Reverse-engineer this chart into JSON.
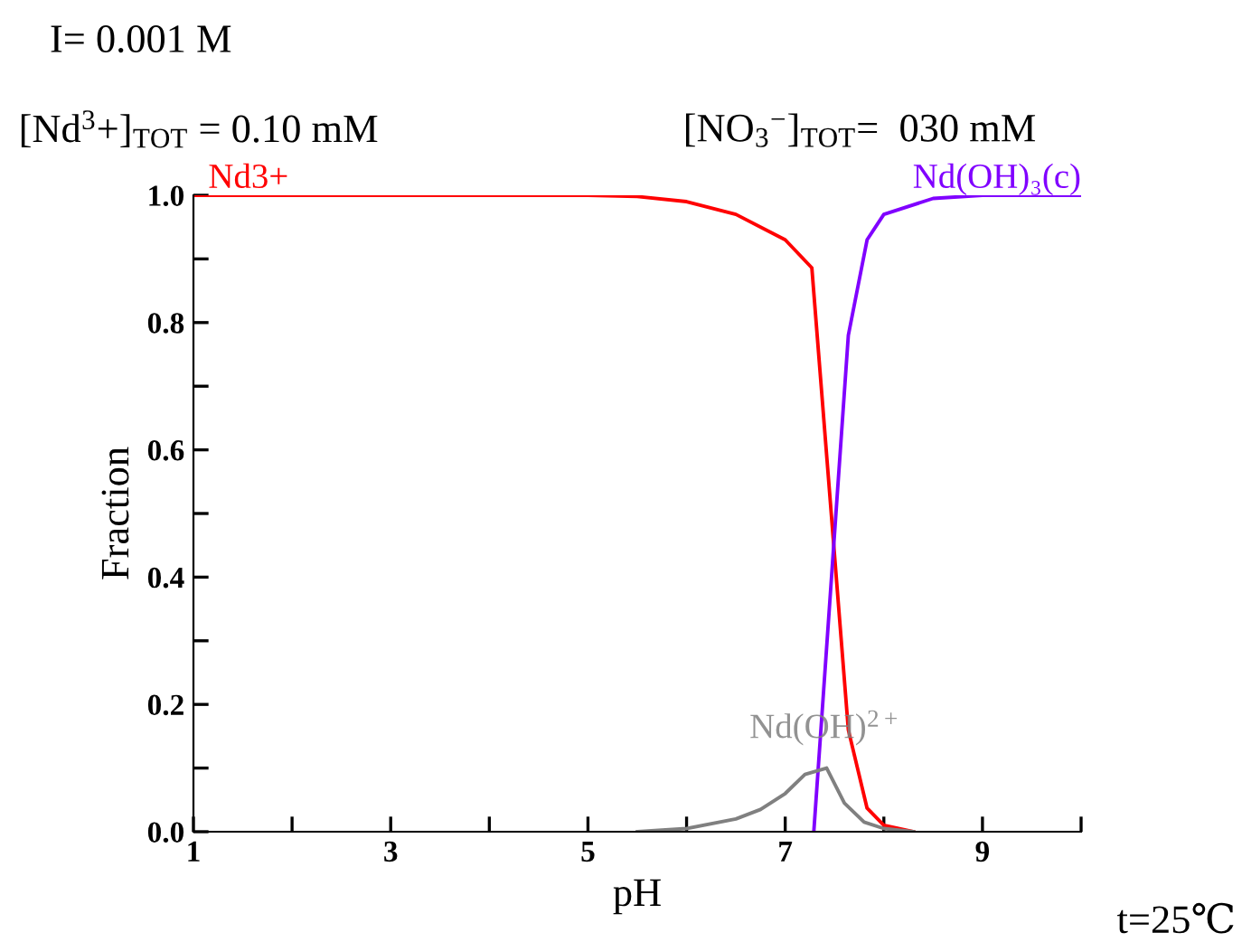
{
  "chart_data": {
    "type": "line",
    "xlabel": "pH",
    "ylabel": "Fraction",
    "annotations": [
      "I= 0.001 M",
      "[Nd$^{3}$+]$_{TOT}$ = 0.10 mM",
      "[NO$_{3}$$^{−}$]$_{TOT}$=  030 mM",
      "t=25℃"
    ],
    "series": [
      {
        "name": "Nd3+",
        "color": "#ff0000",
        "x": [
          1,
          3,
          5,
          5.5,
          6,
          6.5,
          7,
          7.27,
          7.64,
          7.83,
          8.0,
          8.3
        ],
        "values": [
          1.0,
          1.0,
          1.0,
          0.998,
          0.99,
          0.97,
          0.93,
          0.886,
          0.16,
          0.037,
          0.01,
          0
        ]
      },
      {
        "name": "Nd(OH)₃(c)",
        "color": "#8000ff",
        "x": [
          7.29,
          7.64,
          7.83,
          8.0,
          8.5,
          9,
          10
        ],
        "values": [
          0,
          0.78,
          0.93,
          0.97,
          0.995,
          1.0,
          1.0
        ]
      },
      {
        "name": "Nd(OH)$^{2+}$",
        "color": "#808080",
        "x": [
          5.5,
          6.0,
          6.5,
          6.75,
          7.0,
          7.2,
          7.42,
          7.6,
          7.8,
          8.0,
          8.3
        ],
        "values": [
          0,
          0.005,
          0.02,
          0.035,
          0.06,
          0.09,
          0.1,
          0.045,
          0.015,
          0.005,
          0
        ]
      }
    ],
    "xlim": [
      1,
      10
    ],
    "xticks": [
      1,
      {
        "value": 2,
        "label": null
      },
      3,
      {
        "value": 4,
        "label": null
      },
      5,
      {
        "value": 6,
        "label": null
      },
      7,
      {
        "value": 8,
        "label": null
      },
      9,
      {
        "value": 10,
        "label": null
      }
    ],
    "ylim": [
      0,
      1.0
    ],
    "yticks": [
      {
        "value": 0,
        "label": "0.0"
      },
      {
        "value": 0.1,
        "label": null
      },
      0.2,
      {
        "value": 0.3,
        "label": null
      },
      0.4,
      {
        "value": 0.5,
        "label": null
      },
      0.6,
      {
        "value": 0.7,
        "label": null
      },
      0.8,
      {
        "value": 0.9,
        "label": null
      },
      {
        "value": 1.0,
        "label": "1.0"
      }
    ],
    "grid": false,
    "legend": false,
    "marker": "none",
    "line_style": "solid"
  }
}
